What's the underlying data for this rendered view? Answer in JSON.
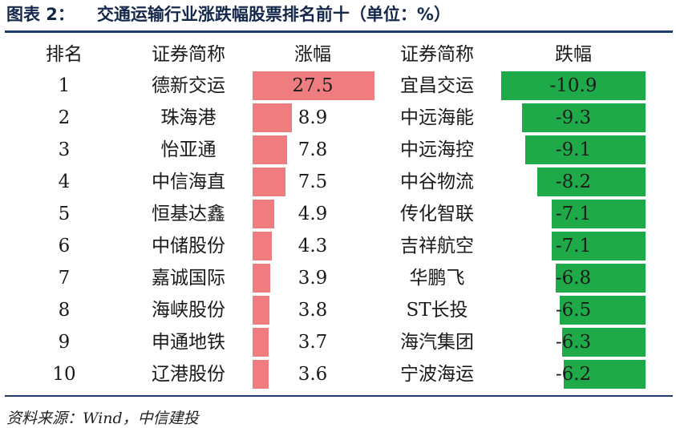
{
  "title": {
    "label": "图表 2：",
    "text": "交通运输行业涨跌幅股票排名前十（单位：%）"
  },
  "headers": {
    "rank": "排名",
    "gain_name": "证券简称",
    "gain": "涨幅",
    "loss_name": "证券简称",
    "loss": "跌幅"
  },
  "source": "资料来源：Wind，中信建投",
  "colors": {
    "gain_bar": "#ef7c7e",
    "loss_bar": "#1faa4a",
    "rule": "#1f3d6b"
  },
  "chart_data": {
    "type": "table",
    "rows": [
      {
        "rank": "1",
        "gain_name": "德新交运",
        "gain": 27.5,
        "gain_label": "27.5",
        "loss_name": "宜昌交运",
        "loss": -10.9,
        "loss_label": "-10.9"
      },
      {
        "rank": "2",
        "gain_name": "珠海港",
        "gain": 8.9,
        "gain_label": "8.9",
        "loss_name": "中远海能",
        "loss": -9.3,
        "loss_label": "-9.3"
      },
      {
        "rank": "3",
        "gain_name": "怡亚通",
        "gain": 7.8,
        "gain_label": "7.8",
        "loss_name": "中远海控",
        "loss": -9.1,
        "loss_label": "-9.1"
      },
      {
        "rank": "4",
        "gain_name": "中信海直",
        "gain": 7.5,
        "gain_label": "7.5",
        "loss_name": "中谷物流",
        "loss": -8.2,
        "loss_label": "-8.2"
      },
      {
        "rank": "5",
        "gain_name": "恒基达鑫",
        "gain": 4.9,
        "gain_label": "4.9",
        "loss_name": "传化智联",
        "loss": -7.1,
        "loss_label": "-7.1"
      },
      {
        "rank": "6",
        "gain_name": "中储股份",
        "gain": 4.3,
        "gain_label": "4.3",
        "loss_name": "吉祥航空",
        "loss": -7.1,
        "loss_label": "-7.1"
      },
      {
        "rank": "7",
        "gain_name": "嘉诚国际",
        "gain": 3.9,
        "gain_label": "3.9",
        "loss_name": "华鹏飞",
        "loss": -6.8,
        "loss_label": "-6.8"
      },
      {
        "rank": "8",
        "gain_name": "海峡股份",
        "gain": 3.8,
        "gain_label": "3.8",
        "loss_name": "ST长投",
        "loss": -6.5,
        "loss_label": "-6.5"
      },
      {
        "rank": "9",
        "gain_name": "申通地铁",
        "gain": 3.7,
        "gain_label": "3.7",
        "loss_name": "海汽集团",
        "loss": -6.3,
        "loss_label": "-6.3"
      },
      {
        "rank": "10",
        "gain_name": "辽港股份",
        "gain": 3.6,
        "gain_label": "3.6",
        "loss_name": "宁波海运",
        "loss": -6.2,
        "loss_label": "-6.2"
      }
    ]
  }
}
